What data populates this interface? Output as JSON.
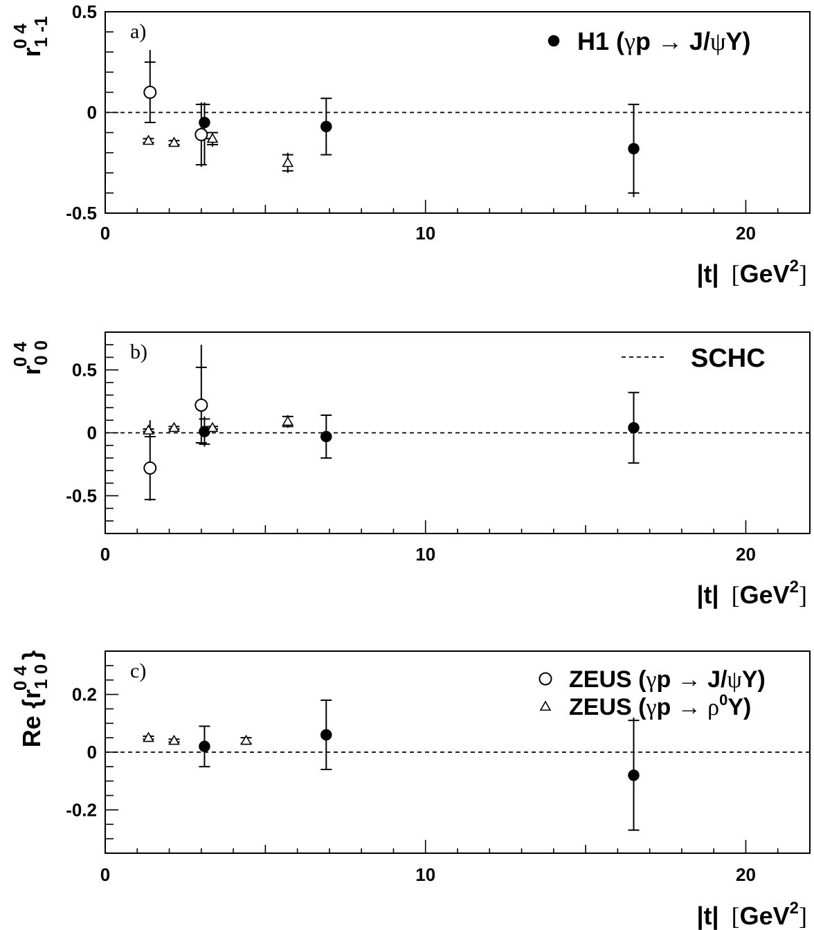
{
  "chart_data": [
    {
      "type": "scatter",
      "panel_label": "a)",
      "ylabel": {
        "main": "r",
        "sup": "0 4",
        "sub": "1 -1"
      },
      "xlabel": {
        "main": "|t|",
        "unit_open": "[",
        "unit": "GeV",
        "unit_sup": "2",
        "unit_close": "]"
      },
      "xlim": [
        0,
        22
      ],
      "ylim": [
        -0.5,
        0.5
      ],
      "x_ticks": [
        0,
        10,
        20
      ],
      "x_tick_labels": [
        "0",
        "10",
        "20"
      ],
      "y_ticks": [
        -0.5,
        0,
        0.5
      ],
      "y_tick_labels": [
        "-0.5",
        "0",
        "0.5"
      ],
      "reference_line": 0,
      "legend": [
        {
          "marker": "filled-circle",
          "text_prefix": "H1 (",
          "gamma": "γ",
          "text_mid": "p → J/",
          "psi": "ψ",
          "text_suffix": "Y)"
        }
      ],
      "legend_position": "top-right",
      "series": [
        {
          "marker": "filled-circle",
          "points": [
            {
              "x": 3.1,
              "y": -0.05,
              "stat": [
                -0.08,
                0.09
              ],
              "tot": [
                -0.21,
                0.1
              ]
            },
            {
              "x": 6.9,
              "y": -0.07,
              "stat": [
                -0.14,
                0.14
              ],
              "tot": [
                -0.14,
                0.14
              ]
            },
            {
              "x": 16.5,
              "y": -0.18,
              "stat": [
                -0.22,
                0.22
              ],
              "tot": [
                -0.24,
                0.22
              ]
            }
          ]
        },
        {
          "marker": "open-circle",
          "points": [
            {
              "x": 1.4,
              "y": 0.1,
              "stat": [
                -0.15,
                0.15
              ],
              "tot": [
                -0.15,
                0.21
              ]
            },
            {
              "x": 3.0,
              "y": -0.11,
              "stat": [
                -0.15,
                0.15
              ],
              "tot": [
                -0.16,
                0.16
              ]
            }
          ]
        },
        {
          "marker": "open-triangle",
          "points": [
            {
              "x": 1.35,
              "y": -0.14,
              "stat": [
                -0.01,
                0.01
              ],
              "tot": [
                -0.01,
                0.01
              ]
            },
            {
              "x": 2.15,
              "y": -0.15,
              "stat": [
                -0.01,
                0.01
              ],
              "tot": [
                -0.01,
                0.01
              ]
            },
            {
              "x": 3.35,
              "y": -0.13,
              "stat": [
                -0.03,
                0.03
              ],
              "tot": [
                -0.04,
                0.03
              ]
            },
            {
              "x": 5.7,
              "y": -0.25,
              "stat": [
                -0.04,
                0.04
              ],
              "tot": [
                -0.05,
                0.05
              ]
            }
          ]
        }
      ]
    },
    {
      "type": "scatter",
      "panel_label": "b)",
      "ylabel": {
        "main": "r",
        "sup": "0 4",
        "sub": "0 0"
      },
      "xlabel": {
        "main": "|t|",
        "unit_open": "[",
        "unit": "GeV",
        "unit_sup": "2",
        "unit_close": "]"
      },
      "xlim": [
        0,
        22
      ],
      "ylim": [
        -0.8,
        0.8
      ],
      "x_ticks": [
        0,
        10,
        20
      ],
      "x_tick_labels": [
        "0",
        "10",
        "20"
      ],
      "y_ticks": [
        -0.5,
        0,
        0.5
      ],
      "y_tick_labels": [
        "-0.5",
        "0",
        "0.5"
      ],
      "reference_line": 0,
      "legend": [
        {
          "marker": "dashed-line",
          "text": "SCHC"
        }
      ],
      "legend_position": "top-right",
      "series": [
        {
          "marker": "filled-circle",
          "points": [
            {
              "x": 3.1,
              "y": 0.01,
              "stat": [
                -0.1,
                0.1
              ],
              "tot": [
                -0.12,
                0.12
              ]
            },
            {
              "x": 6.9,
              "y": -0.03,
              "stat": [
                -0.17,
                0.17
              ],
              "tot": [
                -0.17,
                0.17
              ]
            },
            {
              "x": 16.5,
              "y": 0.04,
              "stat": [
                -0.28,
                0.28
              ],
              "tot": [
                -0.28,
                0.28
              ]
            }
          ]
        },
        {
          "marker": "open-circle",
          "points": [
            {
              "x": 1.4,
              "y": -0.28,
              "stat": [
                -0.25,
                0.25
              ],
              "tot": [
                -0.26,
                0.38
              ]
            },
            {
              "x": 3.0,
              "y": 0.22,
              "stat": [
                -0.3,
                0.3
              ],
              "tot": [
                -0.31,
                0.48
              ]
            }
          ]
        },
        {
          "marker": "open-triangle",
          "points": [
            {
              "x": 1.35,
              "y": 0.02,
              "stat": [
                -0.01,
                0.01
              ],
              "tot": [
                -0.01,
                0.01
              ]
            },
            {
              "x": 2.15,
              "y": 0.04,
              "stat": [
                -0.01,
                0.01
              ],
              "tot": [
                -0.01,
                0.01
              ]
            },
            {
              "x": 3.35,
              "y": 0.04,
              "stat": [
                -0.01,
                0.01
              ],
              "tot": [
                -0.01,
                0.01
              ]
            },
            {
              "x": 5.7,
              "y": 0.09,
              "stat": [
                -0.04,
                0.04
              ],
              "tot": [
                -0.05,
                0.05
              ]
            }
          ]
        }
      ]
    },
    {
      "type": "scatter",
      "panel_label": "c)",
      "ylabel": {
        "prefix": "Re {",
        "main": "r",
        "sup": "0 4",
        "sub": "1 0",
        "suffix": "}"
      },
      "xlabel": {
        "main": "|t|",
        "unit_open": "[",
        "unit": "GeV",
        "unit_sup": "2",
        "unit_close": "]"
      },
      "xlim": [
        0,
        22
      ],
      "ylim": [
        -0.35,
        0.35
      ],
      "x_ticks": [
        0,
        10,
        20
      ],
      "x_tick_labels": [
        "0",
        "10",
        "20"
      ],
      "y_ticks": [
        -0.2,
        0,
        0.2
      ],
      "y_tick_labels": [
        "-0.2",
        "0",
        "0.2"
      ],
      "reference_line": 0,
      "legend": [
        {
          "marker": "open-circle",
          "text_prefix": "ZEUS (",
          "gamma": "γ",
          "text_mid": "p → J/",
          "psi": "ψ",
          "text_suffix": "Y)"
        },
        {
          "marker": "open-triangle",
          "text_prefix": "ZEUS (",
          "gamma": "γ",
          "text_mid": "p → ",
          "rho": "ρ",
          "rho_sup": "0",
          "text_suffix": "Y)"
        }
      ],
      "legend_position": "top-right",
      "series": [
        {
          "marker": "filled-circle",
          "points": [
            {
              "x": 3.1,
              "y": 0.02,
              "stat": [
                -0.07,
                0.07
              ],
              "tot": [
                -0.07,
                0.07
              ]
            },
            {
              "x": 6.9,
              "y": 0.06,
              "stat": [
                -0.12,
                0.12
              ],
              "tot": [
                -0.12,
                0.12
              ]
            },
            {
              "x": 16.5,
              "y": -0.08,
              "stat": [
                -0.19,
                0.19
              ],
              "tot": [
                -0.19,
                0.2
              ]
            }
          ]
        },
        {
          "marker": "open-triangle",
          "points": [
            {
              "x": 1.35,
              "y": 0.05,
              "stat": [
                -0.005,
                0.005
              ],
              "tot": [
                -0.005,
                0.005
              ]
            },
            {
              "x": 2.15,
              "y": 0.04,
              "stat": [
                -0.005,
                0.005
              ],
              "tot": [
                -0.005,
                0.005
              ]
            },
            {
              "x": 4.4,
              "y": 0.04,
              "stat": [
                -0.01,
                0.01
              ],
              "tot": [
                -0.015,
                0.015
              ]
            }
          ]
        }
      ]
    }
  ]
}
